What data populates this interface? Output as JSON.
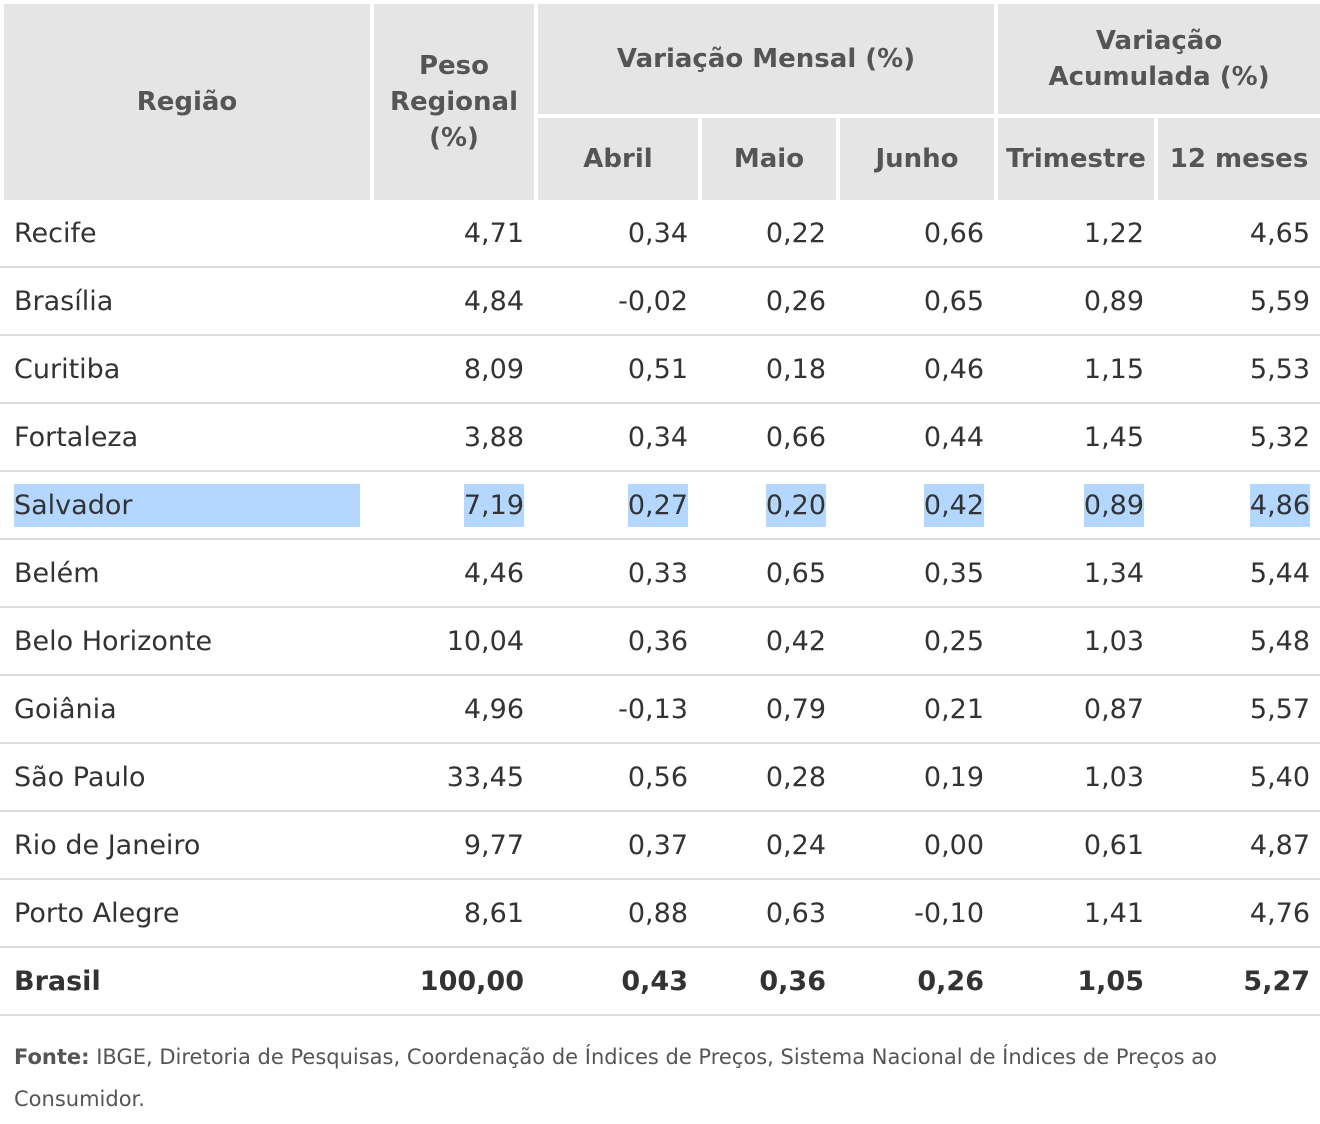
{
  "header": {
    "regiao": "Região",
    "peso_lines": [
      "Peso",
      "Regional",
      "(%)"
    ],
    "variacao_mensal": "Variação Mensal (%)",
    "variacao_acumulada_lines": [
      "Variação",
      "Acumulada (%)"
    ],
    "abril": "Abril",
    "maio": "Maio",
    "junho": "Junho",
    "trimestre": "Trimestre",
    "doze_meses": "12 meses"
  },
  "rows": [
    {
      "regiao": "Recife",
      "peso": "4,71",
      "abril": "0,34",
      "maio": "0,22",
      "junho": "0,66",
      "trimestre": "1,22",
      "doze_meses": "4,65"
    },
    {
      "regiao": "Brasília",
      "peso": "4,84",
      "abril": "-0,02",
      "maio": "0,26",
      "junho": "0,65",
      "trimestre": "0,89",
      "doze_meses": "5,59"
    },
    {
      "regiao": "Curitiba",
      "peso": "8,09",
      "abril": "0,51",
      "maio": "0,18",
      "junho": "0,46",
      "trimestre": "1,15",
      "doze_meses": "5,53"
    },
    {
      "regiao": "Fortaleza",
      "peso": "3,88",
      "abril": "0,34",
      "maio": "0,66",
      "junho": "0,44",
      "trimestre": "1,45",
      "doze_meses": "5,32"
    },
    {
      "regiao": "Salvador",
      "peso": "7,19",
      "abril": "0,27",
      "maio": "0,20",
      "junho": "0,42",
      "trimestre": "0,89",
      "doze_meses": "4,86"
    },
    {
      "regiao": "Belém",
      "peso": "4,46",
      "abril": "0,33",
      "maio": "0,65",
      "junho": "0,35",
      "trimestre": "1,34",
      "doze_meses": "5,44"
    },
    {
      "regiao": "Belo Horizonte",
      "peso": "10,04",
      "abril": "0,36",
      "maio": "0,42",
      "junho": "0,25",
      "trimestre": "1,03",
      "doze_meses": "5,48"
    },
    {
      "regiao": "Goiânia",
      "peso": "4,96",
      "abril": "-0,13",
      "maio": "0,79",
      "junho": "0,21",
      "trimestre": "0,87",
      "doze_meses": "5,57"
    },
    {
      "regiao": "São Paulo",
      "peso": "33,45",
      "abril": "0,56",
      "maio": "0,28",
      "junho": "0,19",
      "trimestre": "1,03",
      "doze_meses": "5,40"
    },
    {
      "regiao": "Rio de Janeiro",
      "peso": "9,77",
      "abril": "0,37",
      "maio": "0,24",
      "junho": "0,00",
      "trimestre": "0,61",
      "doze_meses": "4,87"
    },
    {
      "regiao": "Porto Alegre",
      "peso": "8,61",
      "abril": "0,88",
      "maio": "0,63",
      "junho": "-0,10",
      "trimestre": "1,41",
      "doze_meses": "4,76"
    }
  ],
  "total": {
    "regiao": "Brasil",
    "peso": "100,00",
    "abril": "0,43",
    "maio": "0,36",
    "junho": "0,26",
    "trimestre": "1,05",
    "doze_meses": "5,27"
  },
  "selected_row_index": 4,
  "colors": {
    "header_bg": "#e5e5e5",
    "selection": "#b3d7ff",
    "divider": "#dedede"
  },
  "source": {
    "label": "Fonte:",
    "text": " IBGE, Diretoria de Pesquisas, Coordenação de Índices de Preços, Sistema Nacional de Índices de Preços ao Consumidor."
  }
}
